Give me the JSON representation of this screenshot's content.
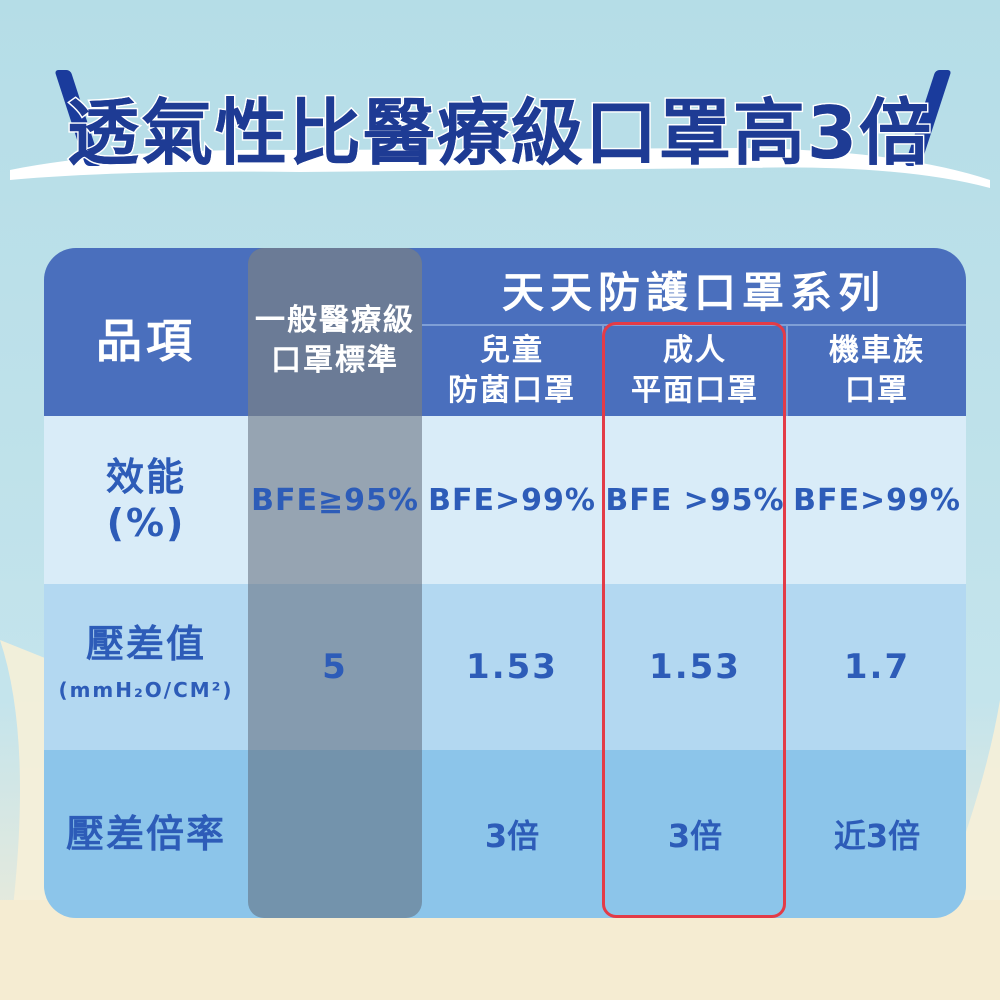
{
  "title": "透氣性比醫療級口罩高3倍",
  "colors": {
    "header_bg": "#4a6fbd",
    "row1_bg": "#d9ecf8",
    "row2_bg": "#b3d8f1",
    "row3_bg": "#8cc5ea",
    "text_blue": "#2d5cb8",
    "highlight_border": "#e33b47",
    "title_blue": "#1e3b94"
  },
  "table": {
    "item_header": "品項",
    "standard_header": [
      "一般醫療級",
      "口罩標準"
    ],
    "series_header": "天天防護口罩系列",
    "columns": [
      {
        "line1": "兒童",
        "line2": "防菌口罩"
      },
      {
        "line1": "成人",
        "line2": "平面口罩"
      },
      {
        "line1": "機車族",
        "line2": "口罩"
      }
    ],
    "rows": [
      {
        "label_line1": "效能",
        "label_line2": "(%)",
        "standard": "BFE≧95%",
        "values": [
          "BFE>99%",
          "BFE >95%",
          "BFE>99%"
        ]
      },
      {
        "label_line1": "壓差值",
        "label_unit": "(mmH₂O/CM²)",
        "standard": "5",
        "values": [
          "1.53",
          "1.53",
          "1.7"
        ]
      },
      {
        "label_line1": "壓差倍率",
        "standard": "",
        "values": [
          "3倍",
          "3倍",
          "近3倍"
        ]
      }
    ]
  }
}
